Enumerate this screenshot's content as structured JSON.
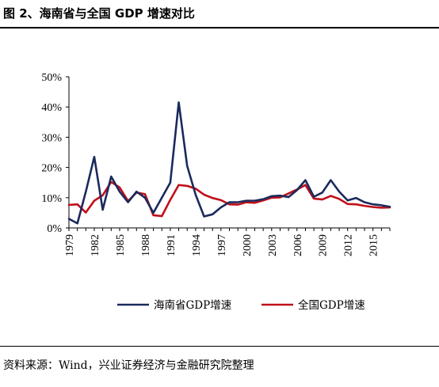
{
  "figure": {
    "title": "图 2、海南省与全国 GDP 增速对比",
    "source": "资料来源：Wind，兴业证券经济与金融研究院整理"
  },
  "chart_data": {
    "type": "line",
    "title": "",
    "xlabel": "",
    "ylabel": "",
    "ylim": [
      0,
      50
    ],
    "yticks": [
      "0%",
      "10%",
      "20%",
      "30%",
      "40%",
      "50%"
    ],
    "xtick_labels": [
      "1979",
      "1982",
      "1985",
      "1988",
      "1991",
      "1994",
      "1997",
      "2000",
      "2003",
      "2006",
      "2009",
      "2012",
      "2015"
    ],
    "grid": false,
    "legend_position": "bottom",
    "x": [
      1979,
      1980,
      1981,
      1982,
      1983,
      1984,
      1985,
      1986,
      1987,
      1988,
      1989,
      1990,
      1991,
      1992,
      1993,
      1994,
      1995,
      1996,
      1997,
      1998,
      1999,
      2000,
      2001,
      2002,
      2003,
      2004,
      2005,
      2006,
      2007,
      2008,
      2009,
      2010,
      2011,
      2012,
      2013,
      2014,
      2015,
      2016,
      2017
    ],
    "series": [
      {
        "name": "海南省GDP增速",
        "color": "#1b2a5c",
        "values": [
          3.0,
          1.5,
          12.0,
          23.5,
          6.0,
          17.0,
          12.0,
          8.5,
          12.0,
          10.0,
          5.0,
          10.0,
          15.0,
          41.5,
          20.5,
          11.0,
          3.8,
          4.5,
          6.8,
          8.5,
          8.5,
          9.0,
          9.0,
          9.5,
          10.5,
          10.7,
          10.2,
          12.5,
          15.8,
          10.3,
          11.7,
          15.8,
          12.0,
          9.1,
          9.9,
          8.5,
          7.8,
          7.5,
          7.0
        ]
      },
      {
        "name": "全国GDP增速",
        "color": "#c0101a",
        "values": [
          7.6,
          7.8,
          5.1,
          9.0,
          10.8,
          15.2,
          13.4,
          8.9,
          11.7,
          11.2,
          4.2,
          3.9,
          9.3,
          14.2,
          13.9,
          13.0,
          11.0,
          9.9,
          9.2,
          7.8,
          7.7,
          8.5,
          8.3,
          9.1,
          10.0,
          10.1,
          11.4,
          12.7,
          14.2,
          9.7,
          9.4,
          10.6,
          9.6,
          7.9,
          7.8,
          7.3,
          6.9,
          6.7,
          6.8
        ]
      }
    ]
  }
}
